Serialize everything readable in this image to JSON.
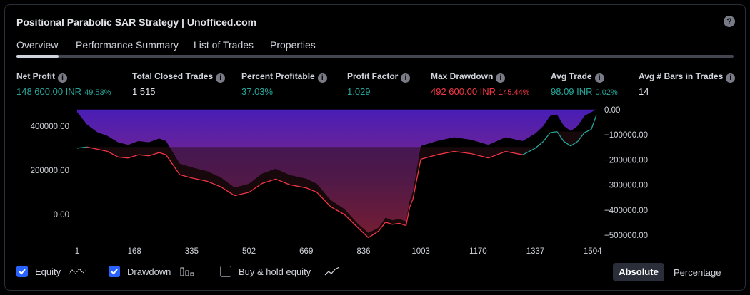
{
  "title": "Positional Parabolic SAR Strategy | Unofficed.com",
  "tabs": [
    "Overview",
    "Performance Summary",
    "List of Trades",
    "Properties"
  ],
  "metrics": [
    {
      "label": "Net Profit",
      "value": "148 600.00 INR",
      "pct": "49.53%",
      "color": "#26a69a"
    },
    {
      "label": "Total Closed Trades",
      "value": "1 515",
      "pct": "",
      "color": "#e1e3e8"
    },
    {
      "label": "Percent Profitable",
      "value": "37.03%",
      "pct": "",
      "color": "#26a69a"
    },
    {
      "label": "Profit Factor",
      "value": "1.029",
      "pct": "",
      "color": "#26a69a"
    },
    {
      "label": "Max Drawdown",
      "value": "492 600.00 INR",
      "pct": "145.44%",
      "color": "#f23645"
    },
    {
      "label": "Avg Trade",
      "value": "98.09 INR",
      "pct": "0.02%",
      "color": "#26a69a"
    },
    {
      "label": "Avg # Bars in Trades",
      "value": "14",
      "pct": "",
      "color": "#e1e3e8"
    }
  ],
  "legend": {
    "equity": "Equity",
    "drawdown": "Drawdown",
    "buyhold": "Buy & hold equity",
    "equity_checked": true,
    "drawdown_checked": true,
    "buyhold_checked": false
  },
  "buttons": {
    "absolute": "Absolute",
    "percentage": "Percentage"
  },
  "chart_data": {
    "type": "line",
    "x_ticks": [
      1,
      168,
      335,
      502,
      669,
      836,
      1003,
      1170,
      1337,
      1504
    ],
    "left_axis_ticks": [
      "400000.00",
      "200000.00",
      "0.00"
    ],
    "right_axis_ticks": [
      "0.00",
      "−100000.00",
      "−200000.00",
      "−300000.00",
      "−400000.00",
      "−500000.00"
    ],
    "xlim": [
      1,
      1515
    ],
    "left_ylim": [
      -100000,
      480000
    ],
    "right_ylim": [
      -505000,
      5000
    ],
    "series": [
      {
        "name": "Equity",
        "x": [
          1,
          30,
          60,
          90,
          120,
          150,
          180,
          210,
          240,
          260,
          300,
          335,
          380,
          420,
          460,
          502,
          540,
          580,
          620,
          669,
          700,
          740,
          780,
          820,
          850,
          880,
          900,
          920,
          940,
          960,
          970,
          980,
          1003,
          1050,
          1100,
          1150,
          1200,
          1250,
          1300,
          1337,
          1360,
          1380,
          1400,
          1420,
          1440,
          1460,
          1480,
          1500,
          1515
        ],
        "values": [
          300000,
          305000,
          295000,
          285000,
          260000,
          255000,
          270000,
          265000,
          280000,
          270000,
          180000,
          165000,
          150000,
          125000,
          85000,
          100000,
          140000,
          160000,
          135000,
          120000,
          100000,
          35000,
          0,
          -60000,
          -105000,
          -75000,
          -35000,
          -45000,
          -40000,
          -50000,
          30000,
          70000,
          250000,
          270000,
          285000,
          275000,
          255000,
          285000,
          270000,
          300000,
          330000,
          370000,
          375000,
          330000,
          310000,
          330000,
          370000,
          385000,
          450000
        ]
      },
      {
        "name": "Drawdown",
        "x": [
          1,
          30,
          60,
          90,
          120,
          150,
          180,
          210,
          240,
          260,
          300,
          335,
          380,
          420,
          460,
          502,
          540,
          580,
          620,
          669,
          700,
          740,
          780,
          820,
          850,
          880,
          900,
          920,
          940,
          960,
          970,
          980,
          1003,
          1050,
          1100,
          1150,
          1200,
          1250,
          1300,
          1337,
          1360,
          1380,
          1400,
          1420,
          1440,
          1460,
          1480,
          1500,
          1515
        ],
        "values": [
          -10000,
          -60000,
          -90000,
          -105000,
          -130000,
          -140000,
          -125000,
          -130000,
          -115000,
          -125000,
          -215000,
          -230000,
          -245000,
          -270000,
          -310000,
          -295000,
          -255000,
          -235000,
          -260000,
          -275000,
          -295000,
          -360000,
          -395000,
          -455000,
          -490000,
          -470000,
          -430000,
          -440000,
          -435000,
          -445000,
          -365000,
          -325000,
          -145000,
          -125000,
          -110000,
          -120000,
          -140000,
          -110000,
          -125000,
          -95000,
          -65000,
          -25000,
          -20000,
          -65000,
          -85000,
          -65000,
          -25000,
          -10000,
          0
        ]
      }
    ]
  },
  "colors": {
    "equity_profit": "#26a69a",
    "equity_loss": "#f23645",
    "drawdown_top": "#4c1fbf",
    "drawdown_bottom": "#d9325e"
  }
}
